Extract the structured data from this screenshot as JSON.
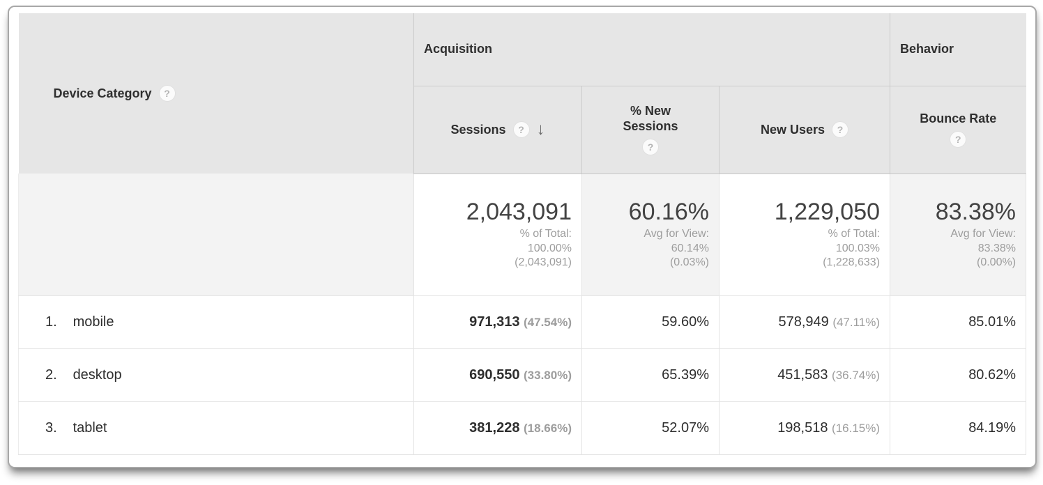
{
  "colors": {
    "header_bg": "#e6e6e6",
    "sorted_column_bg": "#f6f6f6",
    "summary_shaded_bg": "#f3f3f3",
    "border_strong": "#cbcbcb",
    "border_light": "#e3e3e3",
    "text_primary": "#2e2e2e",
    "text_secondary": "#9d9d9d"
  },
  "icons": {
    "help": "?",
    "sort_desc": "↓"
  },
  "table": {
    "dimension_header": {
      "label": "Device Category"
    },
    "group_headers": [
      {
        "label": "Acquisition"
      },
      {
        "label": "Behavior"
      }
    ],
    "columns": [
      {
        "label": "Sessions",
        "sorted": "desc"
      },
      {
        "label": "% New Sessions"
      },
      {
        "label": "New Users"
      },
      {
        "label": "Bounce Rate"
      }
    ],
    "summary": {
      "sessions": {
        "value": "2,043,091",
        "note_label": "% of Total:",
        "note_value": "100.00%",
        "note_abs": "(2,043,091)"
      },
      "new_sessions": {
        "value": "60.16%",
        "note_label": "Avg for View:",
        "note_value": "60.14%",
        "note_abs": "(0.03%)"
      },
      "new_users": {
        "value": "1,229,050",
        "note_label": "% of Total:",
        "note_value": "100.03%",
        "note_abs": "(1,228,633)"
      },
      "bounce_rate": {
        "value": "83.38%",
        "note_label": "Avg for View:",
        "note_value": "83.38%",
        "note_abs": "(0.00%)"
      }
    },
    "rows": [
      {
        "index": "1.",
        "label": "mobile",
        "sessions": "971,313",
        "sessions_share": "(47.54%)",
        "pct_new_sessions": "59.60%",
        "new_users": "578,949",
        "new_users_share": "(47.11%)",
        "bounce_rate": "85.01%"
      },
      {
        "index": "2.",
        "label": "desktop",
        "sessions": "690,550",
        "sessions_share": "(33.80%)",
        "pct_new_sessions": "65.39%",
        "new_users": "451,583",
        "new_users_share": "(36.74%)",
        "bounce_rate": "80.62%"
      },
      {
        "index": "3.",
        "label": "tablet",
        "sessions": "381,228",
        "sessions_share": "(18.66%)",
        "pct_new_sessions": "52.07%",
        "new_users": "198,518",
        "new_users_share": "(16.15%)",
        "bounce_rate": "84.19%"
      }
    ]
  }
}
